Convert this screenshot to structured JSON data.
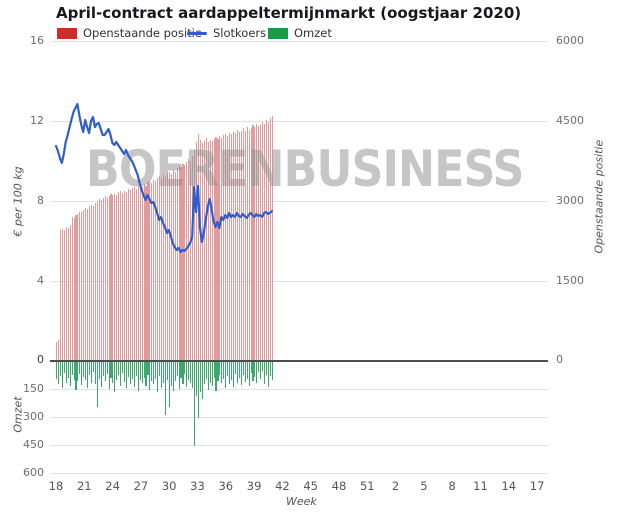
{
  "watermark": {
    "text": "BOERENBUSINESS"
  },
  "colors": {
    "open_interest_bar": "#e49a9a",
    "open_interest_legend": "#cf2b2b",
    "slotkoers_line": "#2f5ecb",
    "omzet_bar": "#3ba86e",
    "omzet_legend": "#169c46",
    "grid": "#e2e2e2",
    "zero_axis": "#4d4d4d"
  },
  "chart_data": {
    "type": "mixed",
    "title": "April-contract aardappeltermijnmarkt (oogstjaar 2020)",
    "legend_position": "top",
    "grid": "horizontal-only",
    "x_axis": {
      "label": "Week",
      "ticks": [
        "18",
        "21",
        "24",
        "27",
        "30",
        "33",
        "36",
        "39",
        "42",
        "45",
        "48",
        "51",
        "2",
        "5",
        "8",
        "11",
        "14",
        "17"
      ]
    },
    "left_axis": {
      "label": "€ per 100 kg",
      "range": [
        0,
        16
      ],
      "ticks": [
        4,
        8,
        12,
        16
      ]
    },
    "right_axis": {
      "label": "Openstaande positie",
      "range": [
        0,
        6000
      ],
      "ticks": [
        1500,
        3000,
        4500,
        6000
      ]
    },
    "volume_axis": {
      "label": "Omzet",
      "range": [
        0,
        600
      ],
      "ticks": [
        150,
        300,
        450,
        600
      ]
    },
    "zero_tick_label": "0",
    "series": [
      {
        "name": "Openstaande positie",
        "type": "bar",
        "axis": "right",
        "values": [
          350,
          390,
          2450,
          2480,
          2460,
          2520,
          2500,
          2550,
          2700,
          2680,
          2730,
          2760,
          2800,
          2790,
          2830,
          2870,
          2850,
          2900,
          2930,
          2910,
          2960,
          2990,
          3030,
          3010,
          3060,
          3090,
          3060,
          3100,
          3130,
          3110,
          3140,
          3120,
          3160,
          3180,
          3150,
          3190,
          3170,
          3220,
          3200,
          3240,
          3260,
          3230,
          3280,
          3300,
          3270,
          3320,
          3290,
          3350,
          3380,
          3340,
          3400,
          3370,
          3430,
          3460,
          3420,
          3480,
          3450,
          3520,
          3550,
          3510,
          3580,
          3540,
          3620,
          3660,
          3630,
          3700,
          3670,
          3740,
          3780,
          3750,
          3850,
          3950,
          4100,
          4250,
          4150,
          4080,
          4120,
          4180,
          4100,
          4150,
          4120,
          4160,
          4200,
          4170,
          4220,
          4180,
          4230,
          4260,
          4220,
          4280,
          4250,
          4300,
          4270,
          4330,
          4290,
          4320,
          4360,
          4310,
          4380,
          4340,
          4370,
          4420,
          4380,
          4440,
          4400,
          4430,
          4480,
          4450,
          4520,
          4490,
          4550,
          4600
        ]
      },
      {
        "name": "Slotkoers",
        "type": "line",
        "axis": "left",
        "values": [
          10.75,
          10.5,
          10.15,
          9.9,
          10.35,
          10.95,
          11.3,
          11.7,
          12.1,
          12.45,
          12.65,
          12.85,
          12.3,
          11.8,
          11.45,
          12.05,
          11.7,
          11.4,
          12.0,
          12.2,
          11.7,
          11.85,
          11.9,
          11.6,
          11.3,
          11.3,
          11.45,
          11.6,
          11.3,
          10.9,
          10.8,
          10.95,
          10.8,
          10.65,
          10.5,
          10.35,
          10.55,
          10.3,
          10.15,
          10.0,
          9.8,
          9.55,
          9.3,
          8.9,
          8.55,
          8.3,
          8.05,
          8.3,
          8.1,
          7.9,
          7.95,
          7.7,
          7.4,
          7.05,
          7.2,
          6.9,
          6.7,
          6.4,
          6.55,
          6.25,
          5.9,
          5.7,
          5.55,
          5.65,
          5.45,
          5.55,
          5.5,
          5.6,
          5.75,
          5.9,
          6.2,
          8.7,
          7.45,
          8.75,
          6.7,
          5.95,
          6.4,
          7.1,
          7.7,
          8.1,
          7.6,
          7.0,
          6.7,
          6.95,
          6.65,
          7.2,
          7.05,
          7.3,
          7.15,
          7.4,
          7.2,
          7.3,
          7.2,
          7.4,
          7.25,
          7.2,
          7.35,
          7.25,
          7.15,
          7.3,
          7.4,
          7.3,
          7.2,
          7.35,
          7.25,
          7.3,
          7.2,
          7.4,
          7.45,
          7.35,
          7.4,
          7.5
        ]
      },
      {
        "name": "Omzet",
        "type": "bar",
        "axis": "volume",
        "values": [
          90,
          120,
          75,
          140,
          60,
          110,
          85,
          130,
          70,
          95,
          150,
          100,
          65,
          125,
          80,
          95,
          140,
          70,
          110,
          55,
          120,
          240,
          90,
          135,
          75,
          100,
          65,
          145,
          85,
          115,
          160,
          95,
          70,
          130,
          60,
          105,
          140,
          80,
          120,
          90,
          135,
          75,
          155,
          95,
          115,
          85,
          130,
          70,
          150,
          100,
          120,
          90,
          160,
          75,
          140,
          110,
          285,
          95,
          240,
          130,
          155,
          100,
          75,
          145,
          85,
          120,
          65,
          135,
          95,
          110,
          140,
          450,
          180,
          300,
          160,
          200,
          120,
          90,
          150,
          110,
          130,
          85,
          155,
          100,
          70,
          115,
          90,
          140,
          75,
          120,
          95,
          135,
          65,
          110,
          85,
          125,
          70,
          105,
          90,
          130,
          60,
          100,
          80,
          115,
          55,
          90,
          50,
          120,
          70,
          135,
          75,
          95
        ]
      }
    ]
  }
}
